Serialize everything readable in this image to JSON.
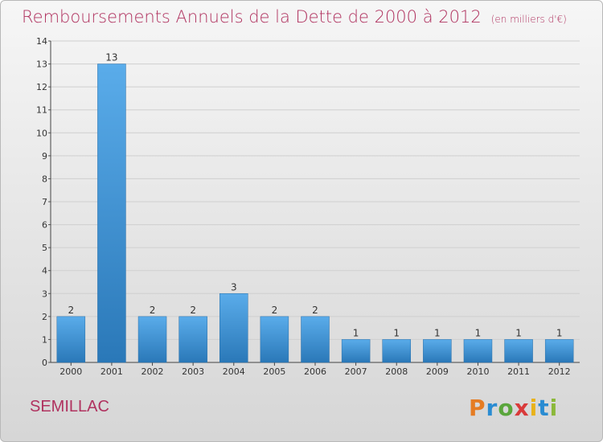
{
  "title": "Remboursements Annuels de la Dette de 2000 à 2012",
  "subtitle": "(en milliers d'€)",
  "place": "SEMILLAC",
  "logo": "Proxiti",
  "colors": {
    "title": "#b0325f",
    "bar_top": "#5aacea",
    "bar_bottom": "#2a78b8"
  },
  "chart_data": {
    "type": "bar",
    "title": "Remboursements Annuels de la Dette de 2000 à 2012",
    "xlabel": "",
    "ylabel": "",
    "ylim": [
      0,
      14
    ],
    "yticks": [
      "0",
      "1",
      "2",
      "3",
      "4",
      "5",
      "6",
      "7",
      "8",
      "9",
      "10",
      "11",
      "12",
      "13",
      "14"
    ],
    "categories": [
      "2000",
      "2001",
      "2002",
      "2003",
      "2004",
      "2005",
      "2006",
      "2007",
      "2008",
      "2009",
      "2010",
      "2011",
      "2012"
    ],
    "values": [
      2,
      13,
      2,
      2,
      3,
      2,
      2,
      1,
      1,
      1,
      1,
      1,
      1
    ],
    "labels": [
      "2",
      "13",
      "2",
      "2",
      "3",
      "2",
      "2",
      "1",
      "1",
      "1",
      "1",
      "1",
      "1"
    ]
  }
}
